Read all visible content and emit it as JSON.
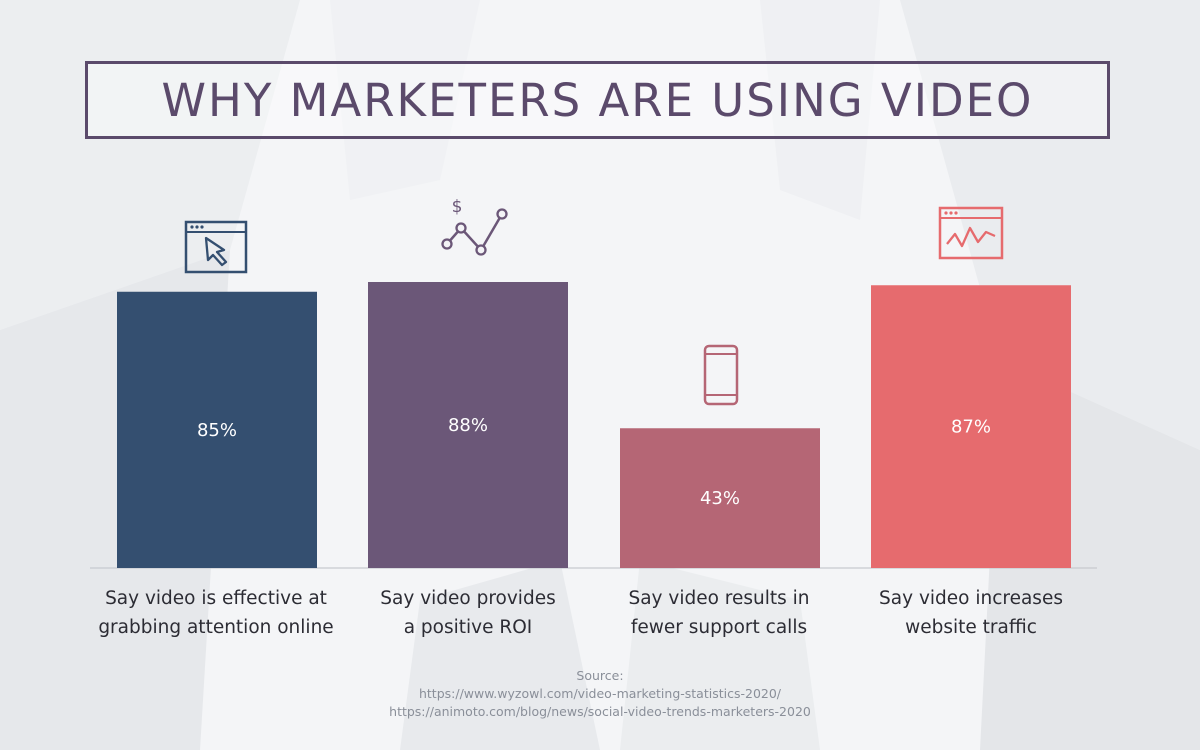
{
  "title": "WHY MARKETERS ARE USING VIDEO",
  "colors": {
    "title": "#5b4a6b",
    "bars": [
      "#344f70",
      "#6b5778",
      "#b56675",
      "#e66b6e"
    ]
  },
  "icons": [
    "browser-cursor-icon",
    "dollar-trend-icon",
    "smartphone-icon",
    "browser-chart-icon"
  ],
  "chart_data": {
    "type": "bar",
    "categories": [
      [
        "Say video is effective at",
        "grabbing attention online"
      ],
      [
        "Say video provides",
        "a positive ROI"
      ],
      [
        "Say video results in",
        "fewer support calls"
      ],
      [
        "Say video increases",
        "website traffic"
      ]
    ],
    "values": [
      85,
      88,
      43,
      87
    ],
    "value_labels": [
      "85%",
      "88%",
      "43%",
      "87%"
    ],
    "ylim": [
      0,
      100
    ],
    "grid": false,
    "legend": "none"
  },
  "source": {
    "label": "Source:",
    "lines": [
      "https://www.wyzowl.com/video-marketing-statistics-2020/",
      "https://animoto.com/blog/news/social-video-trends-marketers-2020"
    ]
  }
}
